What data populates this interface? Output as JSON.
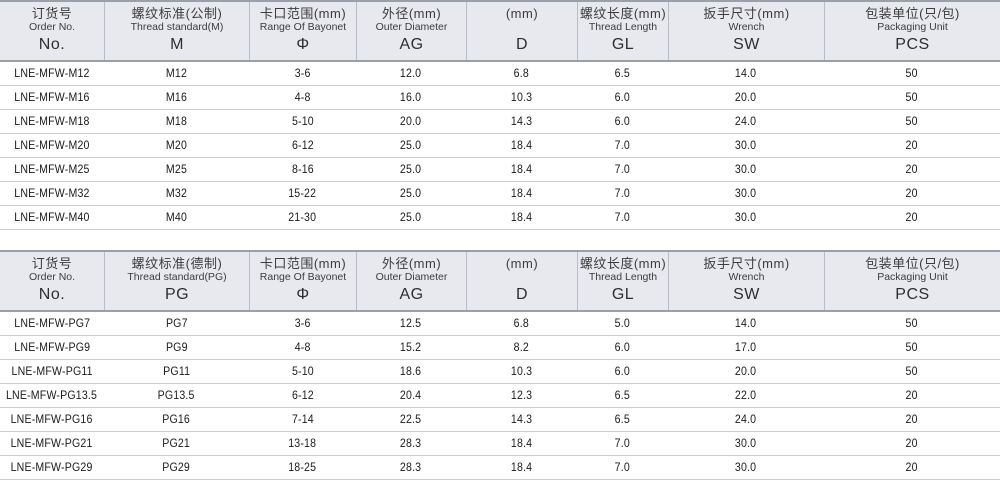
{
  "colors": {
    "header_bg": "#e7e9ef",
    "header_border": "#9aa0a9",
    "header_divider": "#b7bcc5",
    "row_divider": "#c9ccd1",
    "text": "#1b1b1b"
  },
  "tables": [
    {
      "id": "metric",
      "columns": [
        {
          "cn": "订货号",
          "en": "Order No.",
          "code": "No."
        },
        {
          "cn": "螺纹标准(公制)",
          "en": "Thread standard(M)",
          "code": "M"
        },
        {
          "cn": "卡口范围(mm)",
          "en": "Range Of Bayonet",
          "code": "Φ"
        },
        {
          "cn": "外径(mm)",
          "en": "Outer Diameter",
          "code": "AG"
        },
        {
          "cn": "(mm)",
          "en": "",
          "code": "D"
        },
        {
          "cn": "螺纹长度(mm)",
          "en": "Thread Length",
          "code": "GL"
        },
        {
          "cn": "扳手尺寸(mm)",
          "en": "Wrench",
          "code": "SW"
        },
        {
          "cn": "包装单位(只/包)",
          "en": "Packaging Unit",
          "code": "PCS"
        }
      ],
      "rows": [
        [
          "LNE-MFW-M12",
          "M12",
          "3-6",
          "12.0",
          "6.8",
          "6.5",
          "14.0",
          "50"
        ],
        [
          "LNE-MFW-M16",
          "M16",
          "4-8",
          "16.0",
          "10.3",
          "6.0",
          "20.0",
          "50"
        ],
        [
          "LNE-MFW-M18",
          "M18",
          "5-10",
          "20.0",
          "14.3",
          "6.0",
          "24.0",
          "50"
        ],
        [
          "LNE-MFW-M20",
          "M20",
          "6-12",
          "25.0",
          "18.4",
          "7.0",
          "30.0",
          "20"
        ],
        [
          "LNE-MFW-M25",
          "M25",
          "8-16",
          "25.0",
          "18.4",
          "7.0",
          "30.0",
          "20"
        ],
        [
          "LNE-MFW-M32",
          "M32",
          "15-22",
          "25.0",
          "18.4",
          "7.0",
          "30.0",
          "20"
        ],
        [
          "LNE-MFW-M40",
          "M40",
          "21-30",
          "25.0",
          "18.4",
          "7.0",
          "30.0",
          "20"
        ]
      ]
    },
    {
      "id": "pg",
      "columns": [
        {
          "cn": "订货号",
          "en": "Order No.",
          "code": "No."
        },
        {
          "cn": "螺纹标准(德制)",
          "en": "Thread standard(PG)",
          "code": "PG"
        },
        {
          "cn": "卡口范围(mm)",
          "en": "Range Of Bayonet",
          "code": "Φ"
        },
        {
          "cn": "外径(mm)",
          "en": "Outer Diameter",
          "code": "AG"
        },
        {
          "cn": "(mm)",
          "en": "",
          "code": "D"
        },
        {
          "cn": "螺纹长度(mm)",
          "en": "Thread Length",
          "code": "GL"
        },
        {
          "cn": "扳手尺寸(mm)",
          "en": "Wrench",
          "code": "SW"
        },
        {
          "cn": "包装单位(只/包)",
          "en": "Packaging Unit",
          "code": "PCS"
        }
      ],
      "rows": [
        [
          "LNE-MFW-PG7",
          "PG7",
          "3-6",
          "12.5",
          "6.8",
          "5.0",
          "14.0",
          "50"
        ],
        [
          "LNE-MFW-PG9",
          "PG9",
          "4-8",
          "15.2",
          "8.2",
          "6.0",
          "17.0",
          "50"
        ],
        [
          "LNE-MFW-PG11",
          "PG11",
          "5-10",
          "18.6",
          "10.3",
          "6.0",
          "20.0",
          "50"
        ],
        [
          "LNE-MFW-PG13.5",
          "PG13.5",
          "6-12",
          "20.4",
          "12.3",
          "6.5",
          "22.0",
          "20"
        ],
        [
          "LNE-MFW-PG16",
          "PG16",
          "7-14",
          "22.5",
          "14.3",
          "6.5",
          "24.0",
          "20"
        ],
        [
          "LNE-MFW-PG21",
          "PG21",
          "13-18",
          "28.3",
          "18.4",
          "7.0",
          "30.0",
          "20"
        ],
        [
          "LNE-MFW-PG29",
          "PG29",
          "18-25",
          "28.3",
          "18.4",
          "7.0",
          "30.0",
          "20"
        ]
      ]
    }
  ]
}
